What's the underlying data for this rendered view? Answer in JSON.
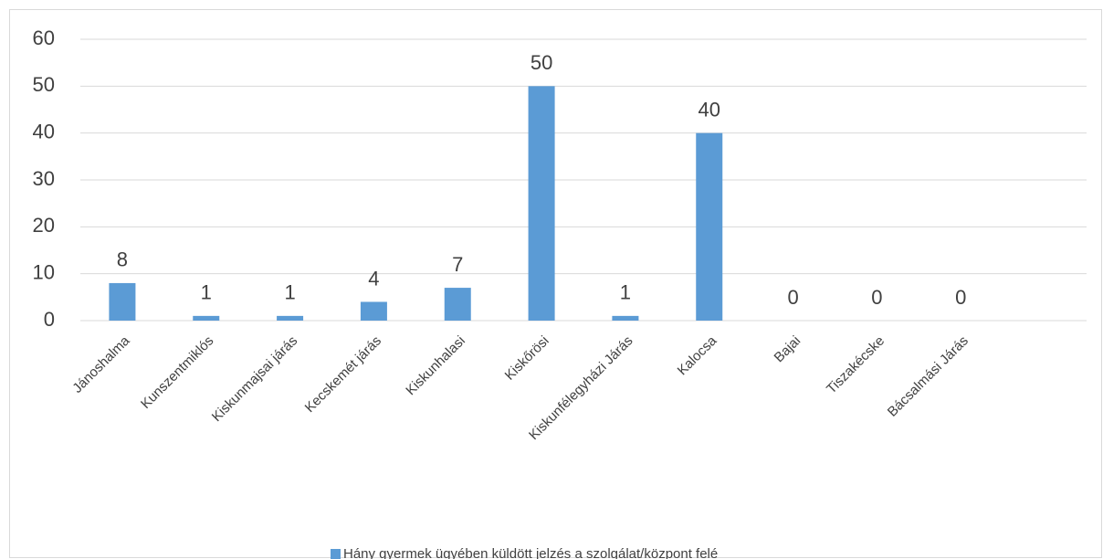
{
  "chart_data": {
    "type": "bar",
    "categories": [
      "Jánoshalma",
      "Kunszentmiklós",
      "Kiskunmajsai járás",
      "Kecskemét járás",
      "Kiskunhalasi",
      "Kiskőrösi",
      "Kiskunfélegyházi Járás",
      "Kalocsa",
      "Bajai",
      "Tiszakécske",
      "Bácsalmási Járás",
      null
    ],
    "series": [
      {
        "name": "Hány gyermek ügyében küldött jelzés a szolgálat/központ felé",
        "color": "#5b9bd5",
        "values": [
          8,
          1,
          1,
          4,
          7,
          50,
          1,
          40,
          0,
          0,
          0,
          null
        ]
      }
    ],
    "ylim": [
      0,
      60
    ],
    "yticks": [
      0,
      10,
      20,
      30,
      40,
      50,
      60
    ],
    "grid": true,
    "legend": "bottom"
  }
}
